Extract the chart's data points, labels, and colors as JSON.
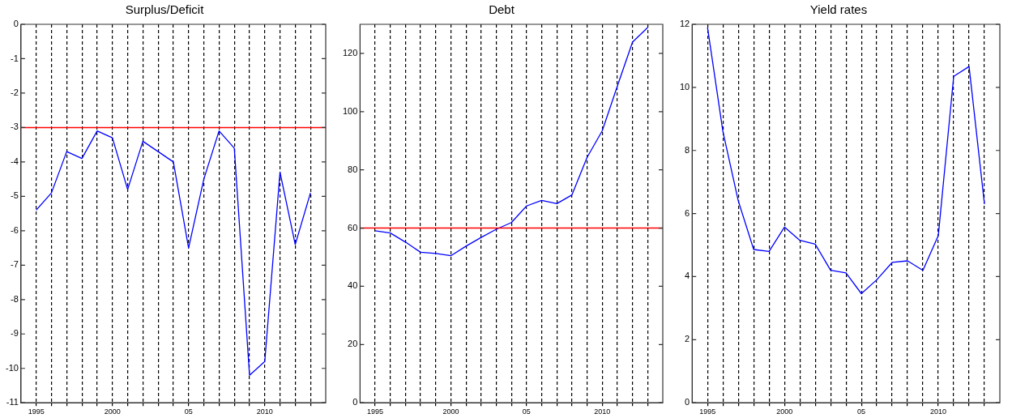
{
  "chart_data": [
    {
      "type": "line",
      "title": "Surplus/Deficit",
      "x": [
        1995,
        1996,
        1997,
        1998,
        1999,
        2000,
        2001,
        2002,
        2003,
        2004,
        2005,
        2006,
        2007,
        2008,
        2009,
        2010,
        2011,
        2012,
        2013
      ],
      "series": [
        {
          "color": "#0000ff",
          "values": [
            -5.4,
            -4.9,
            -3.7,
            -3.9,
            -3.1,
            -3.3,
            -4.8,
            -3.4,
            -3.7,
            -4.0,
            -6.5,
            -4.5,
            -3.1,
            -3.6,
            -10.2,
            -9.8,
            -4.3,
            -6.4,
            -4.9
          ]
        }
      ],
      "xlim": [
        1994,
        2014
      ],
      "xticks": [
        1995,
        {
          "value": 1996,
          "label": null
        },
        {
          "value": 1997,
          "label": null
        },
        {
          "value": 1998,
          "label": null
        },
        {
          "value": 1999,
          "label": null
        },
        2000,
        {
          "value": 2001,
          "label": null
        },
        {
          "value": 2002,
          "label": null
        },
        {
          "value": 2003,
          "label": null
        },
        {
          "value": 2004,
          "label": null
        },
        {
          "value": 2005,
          "label": "05"
        },
        {
          "value": 2006,
          "label": null
        },
        {
          "value": 2007,
          "label": null
        },
        {
          "value": 2008,
          "label": null
        },
        {
          "value": 2009,
          "label": null
        },
        2010,
        {
          "value": 2011,
          "label": null
        },
        {
          "value": 2012,
          "label": null
        },
        {
          "value": 2013,
          "label": null
        }
      ],
      "ylim": [
        -11,
        0
      ],
      "yticks": [
        -11,
        -10,
        -9,
        -8,
        -7,
        -6,
        -5,
        -4,
        -3,
        -2,
        -1,
        0
      ],
      "grid": "x",
      "legend": false,
      "marker": "none",
      "line_style": "solid",
      "ref_lines": [
        {
          "axis": "y",
          "value": -3,
          "color": "#ff0000"
        }
      ]
    },
    {
      "type": "line",
      "title": "Debt",
      "x": [
        1995,
        1996,
        1997,
        1998,
        1999,
        2000,
        2001,
        2002,
        2003,
        2004,
        2005,
        2006,
        2007,
        2008,
        2009,
        2010,
        2011,
        2012,
        2013
      ],
      "series": [
        {
          "color": "#0000ff",
          "values": [
            59.1,
            58.3,
            55.2,
            51.7,
            51.3,
            50.5,
            53.8,
            56.8,
            59.6,
            61.9,
            67.6,
            69.5,
            68.4,
            71.4,
            84.3,
            93.4,
            108.8,
            123.9,
            128.9
          ]
        }
      ],
      "xlim": [
        1994,
        2014
      ],
      "xticks": [
        1995,
        {
          "value": 1996,
          "label": null
        },
        {
          "value": 1997,
          "label": null
        },
        {
          "value": 1998,
          "label": null
        },
        {
          "value": 1999,
          "label": null
        },
        2000,
        {
          "value": 2001,
          "label": null
        },
        {
          "value": 2002,
          "label": null
        },
        {
          "value": 2003,
          "label": null
        },
        {
          "value": 2004,
          "label": null
        },
        {
          "value": 2005,
          "label": "05"
        },
        {
          "value": 2006,
          "label": null
        },
        {
          "value": 2007,
          "label": null
        },
        {
          "value": 2008,
          "label": null
        },
        {
          "value": 2009,
          "label": null
        },
        2010,
        {
          "value": 2011,
          "label": null
        },
        {
          "value": 2012,
          "label": null
        },
        {
          "value": 2013,
          "label": null
        }
      ],
      "ylim": [
        0,
        130
      ],
      "yticks": [
        0,
        20,
        40,
        60,
        80,
        100,
        120
      ],
      "grid": "x",
      "legend": false,
      "marker": "none",
      "line_style": "solid",
      "ref_lines": [
        {
          "axis": "y",
          "value": 60,
          "color": "#ff0000"
        }
      ]
    },
    {
      "type": "line",
      "title": "Yield rates",
      "x": [
        1995,
        1996,
        1997,
        1998,
        1999,
        2000,
        2001,
        2002,
        2003,
        2004,
        2005,
        2006,
        2007,
        2008,
        2009,
        2010,
        2011,
        2012,
        2013
      ],
      "series": [
        {
          "color": "#0000ff",
          "values": [
            11.9,
            8.6,
            6.4,
            4.86,
            4.8,
            5.57,
            5.15,
            5.03,
            4.2,
            4.12,
            3.46,
            3.9,
            4.45,
            4.5,
            4.2,
            5.3,
            10.35,
            10.66,
            6.3
          ]
        }
      ],
      "xlim": [
        1994,
        2014
      ],
      "xticks": [
        1995,
        {
          "value": 1996,
          "label": null
        },
        {
          "value": 1997,
          "label": null
        },
        {
          "value": 1998,
          "label": null
        },
        {
          "value": 1999,
          "label": null
        },
        2000,
        {
          "value": 2001,
          "label": null
        },
        {
          "value": 2002,
          "label": null
        },
        {
          "value": 2003,
          "label": null
        },
        {
          "value": 2004,
          "label": null
        },
        {
          "value": 2005,
          "label": "05"
        },
        {
          "value": 2006,
          "label": null
        },
        {
          "value": 2007,
          "label": null
        },
        {
          "value": 2008,
          "label": null
        },
        {
          "value": 2009,
          "label": null
        },
        2010,
        {
          "value": 2011,
          "label": null
        },
        {
          "value": 2012,
          "label": null
        },
        {
          "value": 2013,
          "label": null
        }
      ],
      "ylim": [
        0,
        12
      ],
      "yticks": [
        0,
        2,
        4,
        6,
        8,
        10,
        12
      ],
      "grid": "x",
      "legend": false,
      "marker": "none",
      "line_style": "solid"
    }
  ]
}
